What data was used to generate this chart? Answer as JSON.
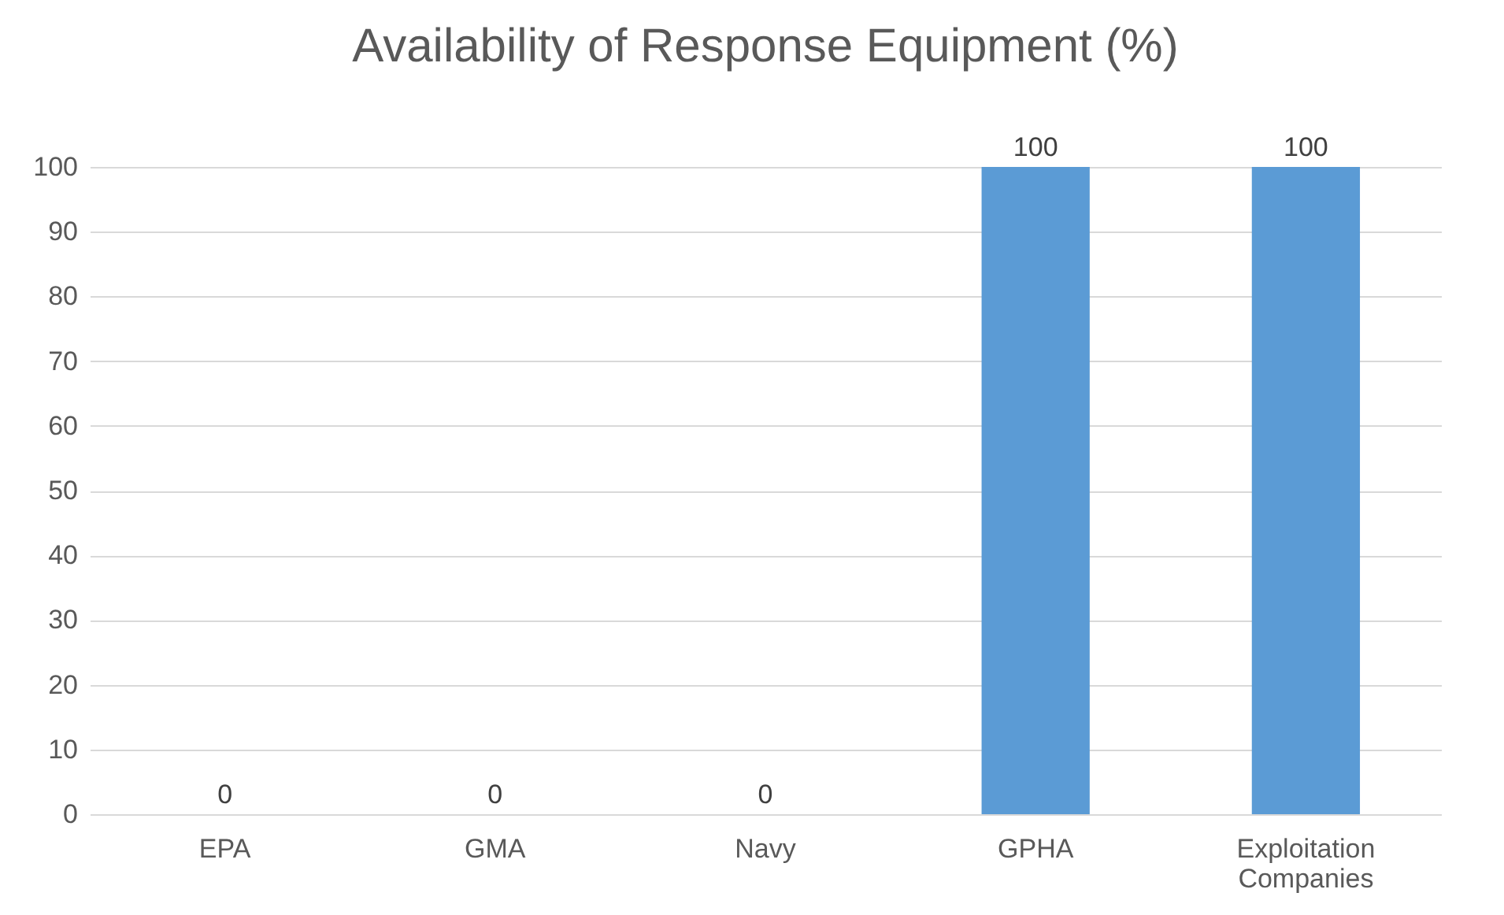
{
  "chart_data": {
    "type": "bar",
    "title": "Availability of Response Equipment (%)",
    "categories": [
      "EPA",
      "GMA",
      "Navy",
      "GPHA",
      "Exploitation Companies"
    ],
    "values": [
      0,
      0,
      0,
      100,
      100
    ],
    "color": "#5b9bd5",
    "ylim": [
      0,
      100
    ],
    "yticks": [
      0,
      10,
      20,
      30,
      40,
      50,
      60,
      70,
      80,
      90,
      100
    ],
    "grid": "y",
    "data_labels": true
  }
}
